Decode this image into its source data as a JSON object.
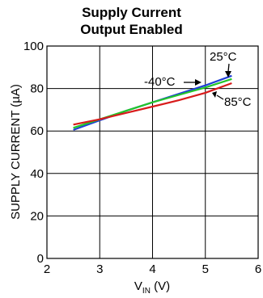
{
  "chart_data": {
    "type": "line",
    "title_lines": [
      "Supply Current",
      "Output Enabled"
    ],
    "xlabel_main": "V",
    "xlabel_sub": "IN",
    "xlabel_unit": " (V)",
    "ylabel": "SUPPLY CURRENT (µA)",
    "xlim": [
      2,
      6
    ],
    "ylim": [
      0,
      100
    ],
    "xticks": [
      2,
      3,
      4,
      5,
      6
    ],
    "yticks": [
      0,
      20,
      40,
      60,
      80,
      100
    ],
    "grid": true,
    "series": [
      {
        "name": "25°C",
        "color": "#1f3fd6",
        "x": [
          2.5,
          3.0,
          3.5,
          4.0,
          4.5,
          5.0,
          5.5
        ],
        "y": [
          60.5,
          65.0,
          69.5,
          73.5,
          77.5,
          81.5,
          86.0
        ]
      },
      {
        "name": "-40°C",
        "color": "#22c62a",
        "x": [
          2.5,
          3.0,
          3.5,
          4.0,
          4.5,
          5.0,
          5.5
        ],
        "y": [
          61.5,
          65.5,
          69.5,
          73.5,
          77.0,
          80.5,
          84.5
        ]
      },
      {
        "name": "85°C",
        "color": "#d81b1b",
        "x": [
          2.5,
          3.0,
          3.5,
          4.0,
          4.5,
          5.0,
          5.5
        ],
        "y": [
          63.0,
          65.5,
          68.5,
          71.5,
          74.5,
          78.0,
          82.5
        ]
      }
    ]
  }
}
